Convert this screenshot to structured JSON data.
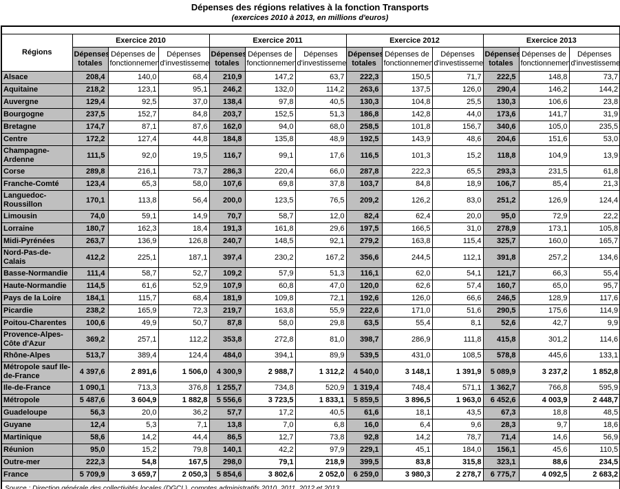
{
  "title": "Dépenses des régions relatives à la fonction Transports",
  "subtitle": "(exercices 2010 à 2013, en millions d'euros)",
  "source": "Source : Direction générale des collectivités locales (DGCL), comptes administratifs 2010, 2011, 2012 et 2013",
  "colors": {
    "header_gray": "#bfbfbf",
    "border": "#000000"
  },
  "table": {
    "corner_label": "Régions",
    "groups": [
      {
        "label": "Exercice 2010"
      },
      {
        "label": "Exercice 2011"
      },
      {
        "label": "Exercice 2012"
      },
      {
        "label": "Exercice 2013"
      }
    ],
    "columns": {
      "total": {
        "line1": "Dépenses",
        "line2": "totales"
      },
      "fonctionnement": {
        "line1": "Dépenses de",
        "line2": "fonctionnement"
      },
      "investissement": {
        "line1": "Dépenses",
        "line2": "d'investissement"
      }
    },
    "rows": [
      {
        "region": "Alsace",
        "bold": false,
        "values": [
          "208,4",
          "140,0",
          "68,4",
          "210,9",
          "147,2",
          "63,7",
          "222,3",
          "150,5",
          "71,7",
          "222,5",
          "148,8",
          "73,7"
        ]
      },
      {
        "region": "Aquitaine",
        "bold": false,
        "values": [
          "218,2",
          "123,1",
          "95,1",
          "246,2",
          "132,0",
          "114,2",
          "263,6",
          "137,5",
          "126,0",
          "290,4",
          "146,2",
          "144,2"
        ]
      },
      {
        "region": "Auvergne",
        "bold": false,
        "values": [
          "129,4",
          "92,5",
          "37,0",
          "138,4",
          "97,8",
          "40,5",
          "130,3",
          "104,8",
          "25,5",
          "130,3",
          "106,6",
          "23,8"
        ]
      },
      {
        "region": "Bourgogne",
        "bold": false,
        "values": [
          "237,5",
          "152,7",
          "84,8",
          "203,7",
          "152,5",
          "51,3",
          "186,8",
          "142,8",
          "44,0",
          "173,6",
          "141,7",
          "31,9"
        ]
      },
      {
        "region": "Bretagne",
        "bold": false,
        "values": [
          "174,7",
          "87,1",
          "87,6",
          "162,0",
          "94,0",
          "68,0",
          "258,5",
          "101,8",
          "156,7",
          "340,6",
          "105,0",
          "235,5"
        ]
      },
      {
        "region": "Centre",
        "bold": false,
        "values": [
          "172,2",
          "127,4",
          "44,8",
          "184,8",
          "135,8",
          "48,9",
          "192,5",
          "143,9",
          "48,6",
          "204,6",
          "151,6",
          "53,0"
        ]
      },
      {
        "region": "Champagne-Ardenne",
        "bold": false,
        "values": [
          "111,5",
          "92,0",
          "19,5",
          "116,7",
          "99,1",
          "17,6",
          "116,5",
          "101,3",
          "15,2",
          "118,8",
          "104,9",
          "13,9"
        ]
      },
      {
        "region": "Corse",
        "bold": false,
        "values": [
          "289,8",
          "216,1",
          "73,7",
          "286,3",
          "220,4",
          "66,0",
          "287,8",
          "222,3",
          "65,5",
          "293,3",
          "231,5",
          "61,8"
        ]
      },
      {
        "region": "Franche-Comté",
        "bold": false,
        "values": [
          "123,4",
          "65,3",
          "58,0",
          "107,6",
          "69,8",
          "37,8",
          "103,7",
          "84,8",
          "18,9",
          "106,7",
          "85,4",
          "21,3"
        ]
      },
      {
        "region": "Languedoc-Roussillon",
        "bold": false,
        "values": [
          "170,1",
          "113,8",
          "56,4",
          "200,0",
          "123,5",
          "76,5",
          "209,2",
          "126,2",
          "83,0",
          "251,2",
          "126,9",
          "124,4"
        ]
      },
      {
        "region": "Limousin",
        "bold": false,
        "values": [
          "74,0",
          "59,1",
          "14,9",
          "70,7",
          "58,7",
          "12,0",
          "82,4",
          "62,4",
          "20,0",
          "95,0",
          "72,9",
          "22,2"
        ]
      },
      {
        "region": "Lorraine",
        "bold": false,
        "values": [
          "180,7",
          "162,3",
          "18,4",
          "191,3",
          "161,8",
          "29,6",
          "197,5",
          "166,5",
          "31,0",
          "278,9",
          "173,1",
          "105,8"
        ]
      },
      {
        "region": "Midi-Pyrénées",
        "bold": false,
        "values": [
          "263,7",
          "136,9",
          "126,8",
          "240,7",
          "148,5",
          "92,1",
          "279,2",
          "163,8",
          "115,4",
          "325,7",
          "160,0",
          "165,7"
        ]
      },
      {
        "region": "Nord-Pas-de-Calais",
        "bold": false,
        "values": [
          "412,2",
          "225,1",
          "187,1",
          "397,4",
          "230,2",
          "167,2",
          "356,6",
          "244,5",
          "112,1",
          "391,8",
          "257,2",
          "134,6"
        ]
      },
      {
        "region": "Basse-Normandie",
        "bold": false,
        "values": [
          "111,4",
          "58,7",
          "52,7",
          "109,2",
          "57,9",
          "51,3",
          "116,1",
          "62,0",
          "54,1",
          "121,7",
          "66,3",
          "55,4"
        ]
      },
      {
        "region": "Haute-Normandie",
        "bold": false,
        "values": [
          "114,5",
          "61,6",
          "52,9",
          "107,9",
          "60,8",
          "47,0",
          "120,0",
          "62,6",
          "57,4",
          "160,7",
          "65,0",
          "95,7"
        ]
      },
      {
        "region": "Pays de la Loire",
        "bold": false,
        "values": [
          "184,1",
          "115,7",
          "68,4",
          "181,9",
          "109,8",
          "72,1",
          "192,6",
          "126,0",
          "66,6",
          "246,5",
          "128,9",
          "117,6"
        ]
      },
      {
        "region": "Picardie",
        "bold": false,
        "values": [
          "238,2",
          "165,9",
          "72,3",
          "219,7",
          "163,8",
          "55,9",
          "222,6",
          "171,0",
          "51,6",
          "290,5",
          "175,6",
          "114,9"
        ]
      },
      {
        "region": "Poitou-Charentes",
        "bold": false,
        "values": [
          "100,6",
          "49,9",
          "50,7",
          "87,8",
          "58,0",
          "29,8",
          "63,5",
          "55,4",
          "8,1",
          "52,6",
          "42,7",
          "9,9"
        ]
      },
      {
        "region": "Provence-Alpes-Côte d'Azur",
        "bold": false,
        "values": [
          "369,2",
          "257,1",
          "112,2",
          "353,8",
          "272,8",
          "81,0",
          "398,7",
          "286,9",
          "111,8",
          "415,8",
          "301,2",
          "114,6"
        ]
      },
      {
        "region": "Rhône-Alpes",
        "bold": false,
        "values": [
          "513,7",
          "389,4",
          "124,4",
          "484,0",
          "394,1",
          "89,9",
          "539,5",
          "431,0",
          "108,5",
          "578,8",
          "445,6",
          "133,1"
        ]
      },
      {
        "region": "Métropole sauf Ile-de-France",
        "bold": true,
        "values": [
          "4 397,6",
          "2 891,6",
          "1 506,0",
          "4 300,9",
          "2 988,7",
          "1 312,2",
          "4 540,0",
          "3 148,1",
          "1 391,9",
          "5 089,9",
          "3 237,2",
          "1 852,8"
        ]
      },
      {
        "region": "Ile-de-France",
        "bold": false,
        "values": [
          "1 090,1",
          "713,3",
          "376,8",
          "1 255,7",
          "734,8",
          "520,9",
          "1 319,4",
          "748,4",
          "571,1",
          "1 362,7",
          "766,8",
          "595,9"
        ]
      },
      {
        "region": "Métropole",
        "bold": true,
        "values": [
          "5 487,6",
          "3 604,9",
          "1 882,8",
          "5 556,6",
          "3 723,5",
          "1 833,1",
          "5 859,5",
          "3 896,5",
          "1 963,0",
          "6 452,6",
          "4 003,9",
          "2 448,7"
        ]
      },
      {
        "region": "Guadeloupe",
        "bold": false,
        "values": [
          "56,3",
          "20,0",
          "36,2",
          "57,7",
          "17,2",
          "40,5",
          "61,6",
          "18,1",
          "43,5",
          "67,3",
          "18,8",
          "48,5"
        ]
      },
      {
        "region": "Guyane",
        "bold": false,
        "values": [
          "12,4",
          "5,3",
          "7,1",
          "13,8",
          "7,0",
          "6,8",
          "16,0",
          "6,4",
          "9,6",
          "28,3",
          "9,7",
          "18,6"
        ]
      },
      {
        "region": "Martinique",
        "bold": false,
        "values": [
          "58,6",
          "14,2",
          "44,4",
          "86,5",
          "12,7",
          "73,8",
          "92,8",
          "14,2",
          "78,7",
          "71,4",
          "14,6",
          "56,9"
        ]
      },
      {
        "region": "Réunion",
        "bold": false,
        "values": [
          "95,0",
          "15,2",
          "79,8",
          "140,1",
          "42,2",
          "97,9",
          "229,1",
          "45,1",
          "184,0",
          "156,1",
          "45,6",
          "110,5"
        ]
      },
      {
        "region": "Outre-mer",
        "bold": true,
        "values": [
          "222,3",
          "54,8",
          "167,5",
          "298,0",
          "79,1",
          "218,9",
          "399,5",
          "83,8",
          "315,8",
          "323,1",
          "88,6",
          "234,5"
        ]
      },
      {
        "region": "France",
        "bold": true,
        "values": [
          "5 709,9",
          "3 659,7",
          "2 050,3",
          "5 854,6",
          "3 802,6",
          "2 052,0",
          "6 259,0",
          "3 980,3",
          "2 278,7",
          "6 775,7",
          "4 092,5",
          "2 683,2"
        ]
      }
    ]
  }
}
